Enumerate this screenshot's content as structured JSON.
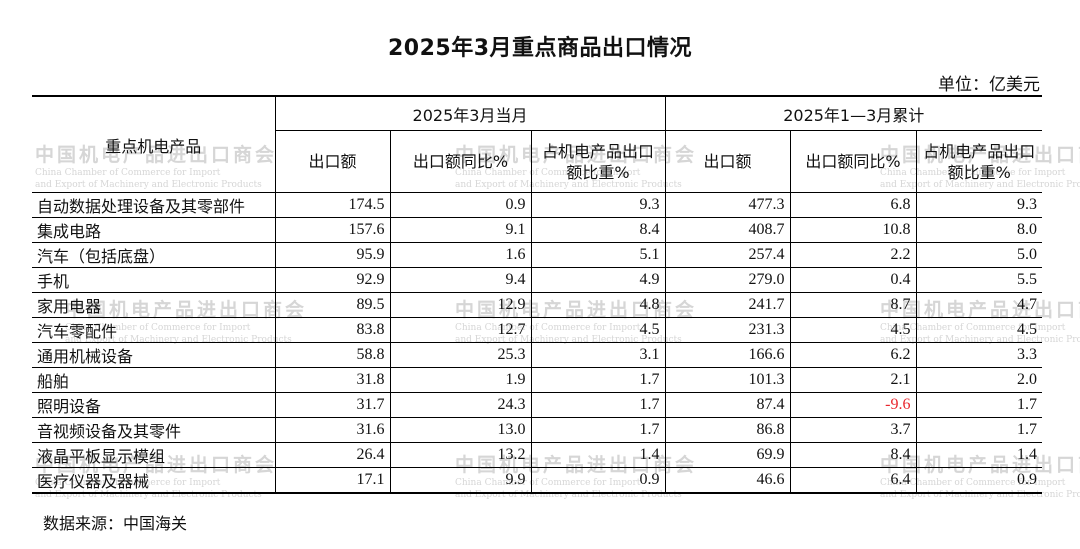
{
  "title": "2025年3月重点商品出口情况",
  "unit": "单位：亿美元",
  "source": "数据来源：中国海关",
  "watermark": {
    "cn": "中国机电产品进出口商会",
    "en1": "China Chamber of Commerce for Import",
    "en2": "and Export of Machinery and Electronic Products"
  },
  "table": {
    "corner_header": "重点机电产品",
    "groups": [
      "2025年3月当月",
      "2025年1—3月累计"
    ],
    "subheaders": [
      "出口额",
      "出口额同比%",
      "占机电产品出口额比重%",
      "出口额",
      "出口额同比%",
      "占机电产品出口额比重%"
    ],
    "rows": [
      {
        "name": "自动数据处理设备及其零部件",
        "v": [
          "174.5",
          "0.9",
          "9.3",
          "477.3",
          "6.8",
          "9.3"
        ]
      },
      {
        "name": "集成电路",
        "v": [
          "157.6",
          "9.1",
          "8.4",
          "408.7",
          "10.8",
          "8.0"
        ]
      },
      {
        "name": "汽车（包括底盘）",
        "v": [
          "95.9",
          "1.6",
          "5.1",
          "257.4",
          "2.2",
          "5.0"
        ]
      },
      {
        "name": "手机",
        "v": [
          "92.9",
          "9.4",
          "4.9",
          "279.0",
          "0.4",
          "5.5"
        ]
      },
      {
        "name": "家用电器",
        "v": [
          "89.5",
          "12.9",
          "4.8",
          "241.7",
          "8.7",
          "4.7"
        ]
      },
      {
        "name": "汽车零配件",
        "v": [
          "83.8",
          "12.7",
          "4.5",
          "231.3",
          "4.5",
          "4.5"
        ]
      },
      {
        "name": "通用机械设备",
        "v": [
          "58.8",
          "25.3",
          "3.1",
          "166.6",
          "6.2",
          "3.3"
        ]
      },
      {
        "name": "船舶",
        "v": [
          "31.8",
          "1.9",
          "1.7",
          "101.3",
          "2.1",
          "2.0"
        ]
      },
      {
        "name": "照明设备",
        "v": [
          "31.7",
          "24.3",
          "1.7",
          "87.4",
          "-9.6",
          "1.7"
        ]
      },
      {
        "name": "音视频设备及其零件",
        "v": [
          "31.6",
          "13.0",
          "1.7",
          "86.8",
          "3.7",
          "1.7"
        ]
      },
      {
        "name": "液晶平板显示模组",
        "v": [
          "26.4",
          "13.2",
          "1.4",
          "69.9",
          "8.4",
          "1.4"
        ]
      },
      {
        "name": "医疗仪器及器械",
        "v": [
          "17.1",
          "9.9",
          "0.9",
          "46.6",
          "6.4",
          "0.9"
        ]
      }
    ],
    "negative_color": "#e8262d"
  }
}
